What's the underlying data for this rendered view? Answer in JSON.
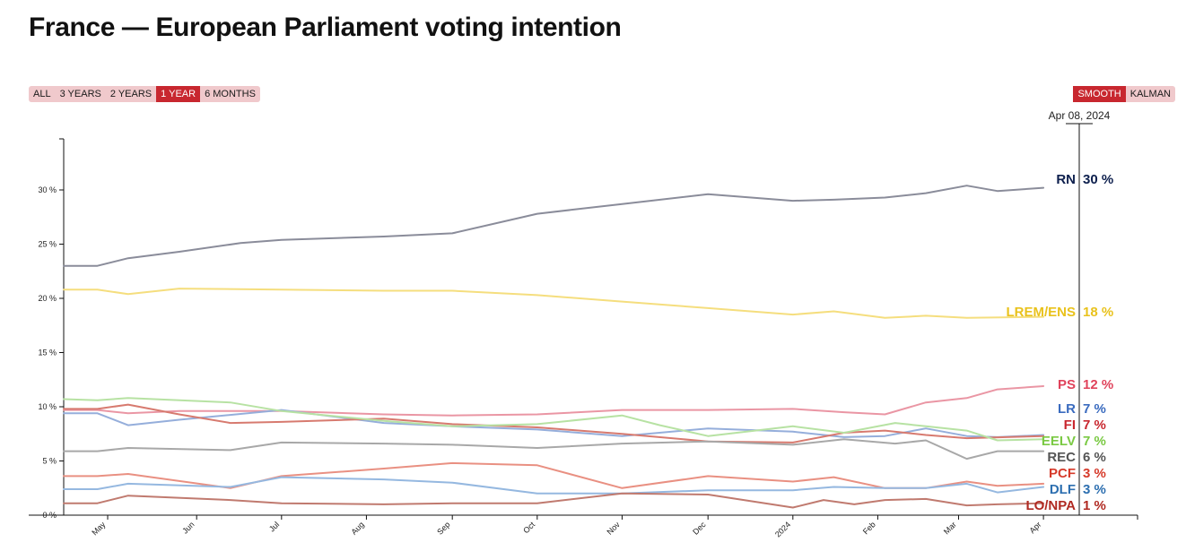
{
  "title": "France — European Parliament voting intention",
  "range_buttons": [
    {
      "label": "ALL",
      "active": false
    },
    {
      "label": "3 YEARS",
      "active": false
    },
    {
      "label": "2 YEARS",
      "active": false
    },
    {
      "label": "1 YEAR",
      "active": true
    },
    {
      "label": "6 MONTHS",
      "active": false
    }
  ],
  "method_buttons": [
    {
      "label": "SMOOTH",
      "active": true
    },
    {
      "label": "KALMAN",
      "active": false
    }
  ],
  "chart_data": {
    "type": "line",
    "title": "France — European Parliament voting intention",
    "cursor_date_label": "Apr 08, 2024",
    "x_domain": [
      2023.287,
      2024.28
    ],
    "ylim": [
      0,
      35
    ],
    "y_ticks": [
      {
        "value": 0,
        "label": "0 %"
      },
      {
        "value": 5,
        "label": "5 %"
      },
      {
        "value": 10,
        "label": "10 %"
      },
      {
        "value": 15,
        "label": "15 %"
      },
      {
        "value": 20,
        "label": "20 %"
      },
      {
        "value": 25,
        "label": "25 %"
      },
      {
        "value": 30,
        "label": "30 %"
      }
    ],
    "x_ticks": [
      {
        "value": 2023.33,
        "label": "May"
      },
      {
        "value": 2023.417,
        "label": "Jun"
      },
      {
        "value": 2023.5,
        "label": "Jul"
      },
      {
        "value": 2023.583,
        "label": "Aug"
      },
      {
        "value": 2023.667,
        "label": "Sep"
      },
      {
        "value": 2023.75,
        "label": "Oct"
      },
      {
        "value": 2023.833,
        "label": "Nov"
      },
      {
        "value": 2023.917,
        "label": "Dec"
      },
      {
        "value": 2024.0,
        "label": "2024"
      },
      {
        "value": 2024.083,
        "label": "Feb"
      },
      {
        "value": 2024.162,
        "label": "Mar"
      },
      {
        "value": 2024.245,
        "label": "Apr"
      }
    ],
    "series": [
      {
        "name": "RN",
        "label": "RN",
        "value_label": "30 %",
        "color": "#0d1f4d",
        "line_color": "#8a8c9a",
        "x": [
          2023.287,
          2023.32,
          2023.35,
          2023.4,
          2023.46,
          2023.5,
          2023.6,
          2023.667,
          2023.75,
          2023.833,
          2023.917,
          2024.0,
          2024.04,
          2024.09,
          2024.13,
          2024.17,
          2024.2,
          2024.245
        ],
        "y": [
          23,
          23,
          23.7,
          24.3,
          25.1,
          25.4,
          25.7,
          26,
          27.8,
          28.7,
          29.6,
          29.0,
          29.1,
          29.3,
          29.7,
          30.4,
          29.9,
          30.2
        ]
      },
      {
        "name": "LREM/ENS",
        "label": "LREM/ENS",
        "value_label": "18 %",
        "color": "#e9c21c",
        "line_color": "#f5de7e",
        "x": [
          2023.287,
          2023.32,
          2023.35,
          2023.4,
          2023.5,
          2023.6,
          2023.667,
          2023.75,
          2023.833,
          2023.917,
          2024.0,
          2024.04,
          2024.09,
          2024.13,
          2024.17,
          2024.245
        ],
        "y": [
          20.8,
          20.8,
          20.4,
          20.9,
          20.8,
          20.7,
          20.7,
          20.3,
          19.7,
          19.1,
          18.5,
          18.8,
          18.2,
          18.4,
          18.2,
          18.3
        ]
      },
      {
        "name": "PS",
        "label": "PS",
        "value_label": "12 %",
        "color": "#e0435b",
        "line_color": "#ea96a4",
        "x": [
          2023.287,
          2023.32,
          2023.35,
          2023.4,
          2023.5,
          2023.6,
          2023.667,
          2023.75,
          2023.833,
          2023.917,
          2024.0,
          2024.05,
          2024.09,
          2024.13,
          2024.17,
          2024.2,
          2024.245
        ],
        "y": [
          9.7,
          9.7,
          9.4,
          9.6,
          9.6,
          9.3,
          9.2,
          9.3,
          9.7,
          9.7,
          9.8,
          9.5,
          9.3,
          10.4,
          10.8,
          11.6,
          11.9
        ]
      },
      {
        "name": "LR",
        "label": "LR",
        "value_label": "7 %",
        "color": "#3a6bbf",
        "line_color": "#95aedb",
        "x": [
          2023.287,
          2023.32,
          2023.35,
          2023.4,
          2023.5,
          2023.6,
          2023.667,
          2023.75,
          2023.833,
          2023.917,
          2024.0,
          2024.05,
          2024.09,
          2024.13,
          2024.17,
          2024.2,
          2024.245
        ],
        "y": [
          9.4,
          9.4,
          8.3,
          8.8,
          9.7,
          8.5,
          8.2,
          7.9,
          7.3,
          8.0,
          7.7,
          7.2,
          7.3,
          8.0,
          7.3,
          7.2,
          7.4
        ]
      },
      {
        "name": "FI",
        "label": "FI",
        "value_label": "7 %",
        "color": "#c8272f",
        "line_color": "#d77a6f",
        "x": [
          2023.287,
          2023.32,
          2023.35,
          2023.4,
          2023.45,
          2023.5,
          2023.6,
          2023.667,
          2023.75,
          2023.833,
          2023.917,
          2024.0,
          2024.05,
          2024.09,
          2024.13,
          2024.17,
          2024.245
        ],
        "y": [
          9.8,
          9.8,
          10.2,
          9.3,
          8.5,
          8.6,
          8.9,
          8.4,
          8.1,
          7.5,
          6.8,
          6.7,
          7.6,
          7.8,
          7.4,
          7.1,
          7.3
        ]
      },
      {
        "name": "EELV",
        "label": "EELV",
        "value_label": "7 %",
        "color": "#7ac943",
        "line_color": "#b7e2a3",
        "x": [
          2023.287,
          2023.32,
          2023.35,
          2023.45,
          2023.5,
          2023.6,
          2023.667,
          2023.75,
          2023.833,
          2023.87,
          2023.917,
          2024.0,
          2024.05,
          2024.1,
          2024.13,
          2024.17,
          2024.2,
          2024.245
        ],
        "y": [
          10.7,
          10.6,
          10.8,
          10.4,
          9.6,
          8.7,
          8.2,
          8.4,
          9.2,
          8.3,
          7.3,
          8.2,
          7.6,
          8.5,
          8.2,
          7.8,
          6.9,
          7.0
        ]
      },
      {
        "name": "REC",
        "label": "REC",
        "value_label": "6 %",
        "color": "#555555",
        "line_color": "#a8a8a8",
        "x": [
          2023.287,
          2023.32,
          2023.35,
          2023.45,
          2023.5,
          2023.6,
          2023.667,
          2023.75,
          2023.833,
          2023.917,
          2024.0,
          2024.05,
          2024.1,
          2024.13,
          2024.17,
          2024.2,
          2024.245
        ],
        "y": [
          5.9,
          5.9,
          6.2,
          6.0,
          6.7,
          6.6,
          6.5,
          6.2,
          6.6,
          6.8,
          6.5,
          7.0,
          6.6,
          6.9,
          5.2,
          5.9,
          5.9
        ]
      },
      {
        "name": "PCF",
        "label": "PCF",
        "value_label": "3 %",
        "color": "#d63a2a",
        "line_color": "#e99082",
        "x": [
          2023.287,
          2023.32,
          2023.35,
          2023.45,
          2023.5,
          2023.6,
          2023.667,
          2023.75,
          2023.833,
          2023.917,
          2024.0,
          2024.04,
          2024.09,
          2024.13,
          2024.17,
          2024.2,
          2024.245
        ],
        "y": [
          3.6,
          3.6,
          3.8,
          2.5,
          3.6,
          4.3,
          4.8,
          4.6,
          2.5,
          3.6,
          3.1,
          3.5,
          2.5,
          2.5,
          3.1,
          2.7,
          2.9
        ]
      },
      {
        "name": "DLF",
        "label": "DLF",
        "value_label": "3 %",
        "color": "#2d6fb0",
        "line_color": "#95b8e0",
        "x": [
          2023.287,
          2023.32,
          2023.35,
          2023.45,
          2023.5,
          2023.6,
          2023.667,
          2023.75,
          2023.833,
          2023.917,
          2024.0,
          2024.04,
          2024.09,
          2024.13,
          2024.17,
          2024.2,
          2024.245
        ],
        "y": [
          2.4,
          2.4,
          2.9,
          2.6,
          3.5,
          3.3,
          3.0,
          2.0,
          2.0,
          2.3,
          2.3,
          2.6,
          2.5,
          2.5,
          2.9,
          2.1,
          2.6
        ]
      },
      {
        "name": "LO/NPA",
        "label": "LO/NPA",
        "value_label": "1 %",
        "color": "#b02a22",
        "line_color": "#c07a6f",
        "x": [
          2023.287,
          2023.32,
          2023.35,
          2023.45,
          2023.5,
          2023.6,
          2023.667,
          2023.75,
          2023.833,
          2023.917,
          2024.0,
          2024.03,
          2024.06,
          2024.09,
          2024.13,
          2024.17,
          2024.2,
          2024.245
        ],
        "y": [
          1.1,
          1.1,
          1.8,
          1.4,
          1.1,
          1.0,
          1.1,
          1.1,
          2.0,
          1.9,
          0.7,
          1.4,
          1.0,
          1.4,
          1.5,
          0.9,
          1.0,
          1.1
        ]
      }
    ]
  }
}
